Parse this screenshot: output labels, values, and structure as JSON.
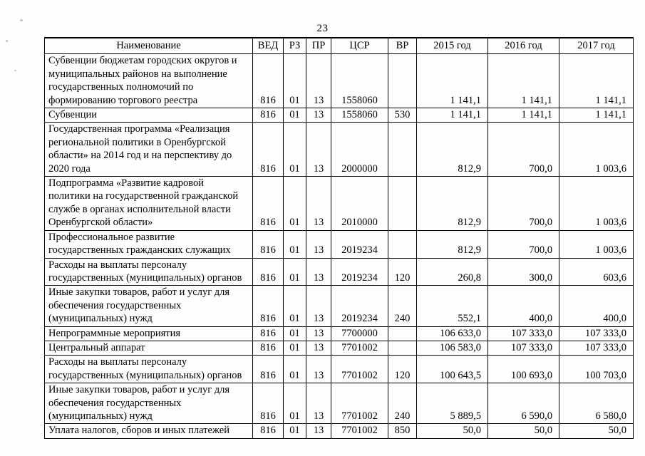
{
  "page": {
    "number": "23"
  },
  "table": {
    "headers": [
      "Наименование",
      "ВЕД",
      "РЗ",
      "ПР",
      "ЦСР",
      "ВР",
      "2015 год",
      "2016 год",
      "2017 год"
    ],
    "rows": [
      {
        "name": "Субвенции бюджетам городских округов и муниципальных районов на выполнение государственных полномочий по формированию торгового реестра",
        "ved": "816",
        "rz": "01",
        "pr": "13",
        "csr": "1558060",
        "vr": "",
        "y2015": "1 141,1",
        "y2016": "1 141,1",
        "y2017": "1 141,1"
      },
      {
        "name": "Субвенции",
        "ved": "816",
        "rz": "01",
        "pr": "13",
        "csr": "1558060",
        "vr": "530",
        "y2015": "1 141,1",
        "y2016": "1 141,1",
        "y2017": "1 141,1"
      },
      {
        "name": "Государственная программа «Реализация региональной политики в Оренбургской области» на 2014 год и на перспективу до 2020 года",
        "ved": "816",
        "rz": "01",
        "pr": "13",
        "csr": "2000000",
        "vr": "",
        "y2015": "812,9",
        "y2016": "700,0",
        "y2017": "1 003,6"
      },
      {
        "name": "Подпрограмма «Развитие кадровой политики на государственной гражданской службе в органах исполнительной власти Оренбургской области»",
        "ved": "816",
        "rz": "01",
        "pr": "13",
        "csr": "2010000",
        "vr": "",
        "y2015": "812,9",
        "y2016": "700,0",
        "y2017": "1 003,6"
      },
      {
        "name": "Профессиональное развитие государственных гражданских служащих",
        "ved": "816",
        "rz": "01",
        "pr": "13",
        "csr": "2019234",
        "vr": "",
        "y2015": "812,9",
        "y2016": "700,0",
        "y2017": "1 003,6"
      },
      {
        "name": "Расходы на выплаты персоналу государственных (муниципальных) органов",
        "ved": "816",
        "rz": "01",
        "pr": "13",
        "csr": "2019234",
        "vr": "120",
        "y2015": "260,8",
        "y2016": "300,0",
        "y2017": "603,6"
      },
      {
        "name": "Иные закупки товаров, работ и услуг для обеспечения государственных (муниципальных) нужд",
        "ved": "816",
        "rz": "01",
        "pr": "13",
        "csr": "2019234",
        "vr": "240",
        "y2015": "552,1",
        "y2016": "400,0",
        "y2017": "400,0"
      },
      {
        "name": "Непрограммные мероприятия",
        "ved": "816",
        "rz": "01",
        "pr": "13",
        "csr": "7700000",
        "vr": "",
        "y2015": "106 633,0",
        "y2016": "107 333,0",
        "y2017": "107 333,0"
      },
      {
        "name": "Центральный аппарат",
        "ved": "816",
        "rz": "01",
        "pr": "13",
        "csr": "7701002",
        "vr": "",
        "y2015": "106 583,0",
        "y2016": "107 333,0",
        "y2017": "107 333,0"
      },
      {
        "name": "Расходы на выплаты персоналу государственных (муниципальных) органов",
        "ved": "816",
        "rz": "01",
        "pr": "13",
        "csr": "7701002",
        "vr": "120",
        "y2015": "100 643,5",
        "y2016": "100 693,0",
        "y2017": "100 703,0"
      },
      {
        "name": "Иные закупки товаров, работ и услуг для обеспечения государственных (муниципальных) нужд",
        "ved": "816",
        "rz": "01",
        "pr": "13",
        "csr": "7701002",
        "vr": "240",
        "y2015": "5 889,5",
        "y2016": "6 590,0",
        "y2017": "6 580,0"
      },
      {
        "name": "Уплата налогов, сборов и иных платежей",
        "ved": "816",
        "rz": "01",
        "pr": "13",
        "csr": "7701002",
        "vr": "850",
        "y2015": "50,0",
        "y2016": "50,0",
        "y2017": "50,0"
      }
    ]
  }
}
